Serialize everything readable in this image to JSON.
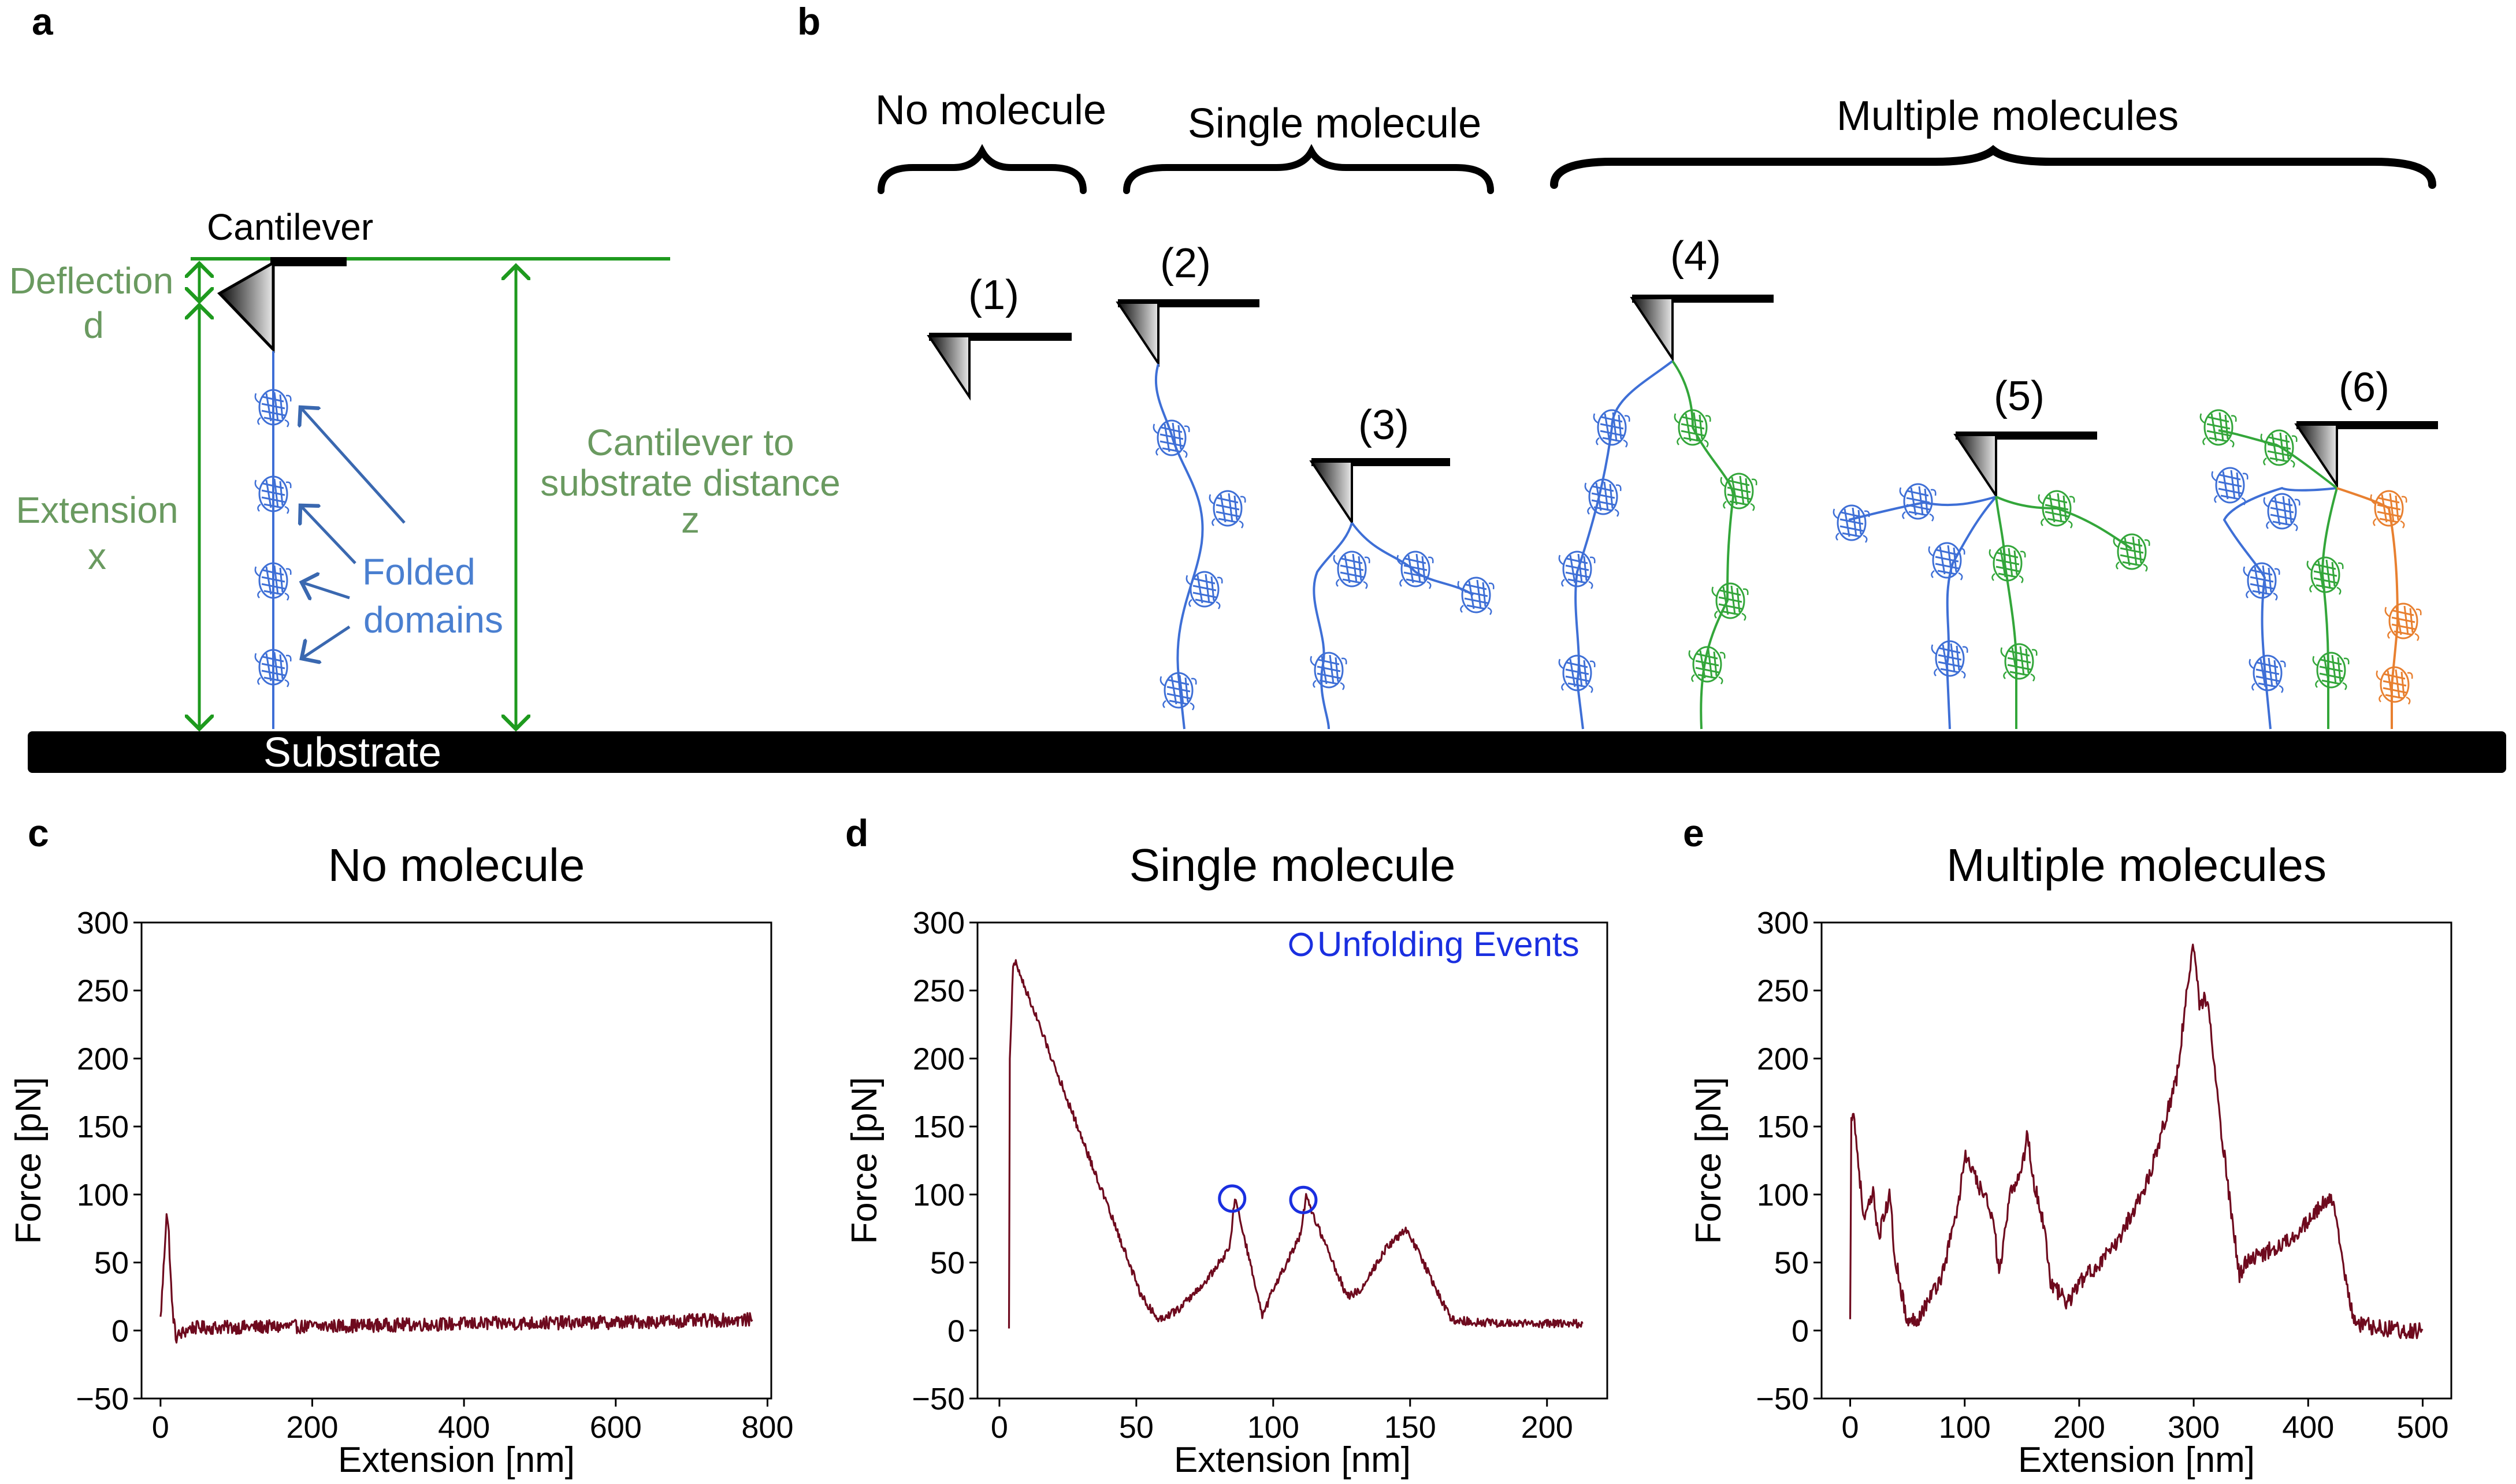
{
  "colors": {
    "trace": "#6e0a1e",
    "label_green": "#6a9a60",
    "line_green": "#1e9a1e",
    "blue_text": "#4a7fd0",
    "arrow_blue": "#3a68b0",
    "domain_blue": "#3e6fd6",
    "domain_green": "#33a63a",
    "domain_orange": "#e88030",
    "marker_blue": "#1a2fe0",
    "black": "#000000"
  },
  "panel_a": {
    "letter": "a",
    "cantilever_label": "Cantilever",
    "deflection_label": "Deflection",
    "deflection_symbol": "d",
    "extension_label": "Extension",
    "extension_symbol": "x",
    "distance_label_line1": "Cantilever to",
    "distance_label_line2": "substrate distance",
    "distance_symbol": "z",
    "folded_label_line1": "Folded",
    "folded_label_line2": "domains",
    "substrate_label": "Substrate"
  },
  "panel_b": {
    "letter": "b",
    "group_none": "No molecule",
    "group_single": "Single molecule",
    "group_multiple": "Multiple molecules",
    "case_1": "(1)",
    "case_2": "(2)",
    "case_3": "(3)",
    "case_4": "(4)",
    "case_5": "(5)",
    "case_6": "(6)"
  },
  "chart_data": [
    {
      "panel": "c",
      "type": "line",
      "title": "No molecule",
      "xlabel": "Extension [nm]",
      "ylabel": "Force [pN]",
      "xlim": [
        -25,
        805
      ],
      "ylim": [
        -50,
        300
      ],
      "xticks": [
        0,
        200,
        400,
        600,
        800
      ],
      "yticks": [
        -50,
        0,
        50,
        100,
        150,
        200,
        250,
        300
      ],
      "xtick_labels": [
        "0",
        "200",
        "400",
        "600",
        "800"
      ],
      "ytick_labels": [
        "−50",
        "0",
        "50",
        "100",
        "150",
        "200",
        "250",
        "300"
      ],
      "grid": false,
      "noise": 5,
      "trace": [
        [
          0,
          8
        ],
        [
          4,
          45
        ],
        [
          8,
          88
        ],
        [
          11,
          70
        ],
        [
          15,
          20
        ],
        [
          20,
          -5
        ],
        [
          40,
          2
        ],
        [
          200,
          3
        ],
        [
          400,
          5
        ],
        [
          600,
          6
        ],
        [
          780,
          8
        ]
      ]
    },
    {
      "panel": "d",
      "type": "line",
      "title": "Single molecule",
      "xlabel": "Extension [nm]",
      "ylabel": "Force [pN]",
      "xlim": [
        -8,
        222
      ],
      "ylim": [
        -50,
        300
      ],
      "xticks": [
        0,
        50,
        100,
        150,
        200
      ],
      "yticks": [
        -50,
        0,
        50,
        100,
        150,
        200,
        250,
        300
      ],
      "xtick_labels": [
        "0",
        "50",
        "100",
        "150",
        "200"
      ],
      "ytick_labels": [
        "−50",
        "0",
        "50",
        "100",
        "150",
        "200",
        "250",
        "300"
      ],
      "grid": false,
      "noise": 3,
      "legend": {
        "label": "Unfolding Events",
        "loc": "upper right"
      },
      "events": [
        [
          85,
          97
        ],
        [
          111,
          96
        ]
      ],
      "trace": [
        [
          3.5,
          0
        ],
        [
          3.8,
          200
        ],
        [
          5,
          268
        ],
        [
          6,
          270
        ],
        [
          52,
          25
        ],
        [
          58,
          8
        ],
        [
          65,
          15
        ],
        [
          75,
          35
        ],
        [
          84,
          60
        ],
        [
          86,
          97
        ],
        [
          87,
          90
        ],
        [
          96,
          10
        ],
        [
          100,
          30
        ],
        [
          110,
          70
        ],
        [
          112,
          98
        ],
        [
          114,
          88
        ],
        [
          127,
          25
        ],
        [
          132,
          30
        ],
        [
          141,
          60
        ],
        [
          149,
          75
        ],
        [
          150,
          70
        ],
        [
          165,
          8
        ],
        [
          175,
          6
        ],
        [
          190,
          5
        ],
        [
          213,
          5
        ]
      ]
    },
    {
      "panel": "e",
      "type": "line",
      "title": "Multiple molecules",
      "xlabel": "Extension [nm]",
      "ylabel": "Force [pN]",
      "xlim": [
        -25,
        525
      ],
      "ylim": [
        -50,
        300
      ],
      "xticks": [
        0,
        100,
        200,
        300,
        400,
        500
      ],
      "yticks": [
        -50,
        0,
        50,
        100,
        150,
        200,
        250,
        300
      ],
      "xtick_labels": [
        "0",
        "100",
        "200",
        "300",
        "400",
        "500"
      ],
      "ytick_labels": [
        "−50",
        "0",
        "50",
        "100",
        "150",
        "200",
        "250",
        "300"
      ],
      "grid": false,
      "noise": 6,
      "trace": [
        [
          0,
          5
        ],
        [
          1,
          160
        ],
        [
          3,
          160
        ],
        [
          12,
          80
        ],
        [
          20,
          100
        ],
        [
          25,
          70
        ],
        [
          35,
          100
        ],
        [
          38,
          60
        ],
        [
          50,
          5
        ],
        [
          60,
          10
        ],
        [
          80,
          40
        ],
        [
          95,
          95
        ],
        [
          100,
          130
        ],
        [
          110,
          110
        ],
        [
          125,
          85
        ],
        [
          130,
          40
        ],
        [
          140,
          100
        ],
        [
          150,
          120
        ],
        [
          155,
          145
        ],
        [
          160,
          110
        ],
        [
          170,
          75
        ],
        [
          175,
          35
        ],
        [
          190,
          20
        ],
        [
          200,
          35
        ],
        [
          230,
          60
        ],
        [
          260,
          110
        ],
        [
          285,
          185
        ],
        [
          295,
          255
        ],
        [
          300,
          285
        ],
        [
          305,
          240
        ],
        [
          312,
          245
        ],
        [
          322,
          160
        ],
        [
          340,
          40
        ],
        [
          345,
          50
        ],
        [
          380,
          65
        ],
        [
          400,
          80
        ],
        [
          420,
          100
        ],
        [
          440,
          5
        ],
        [
          480,
          0
        ],
        [
          500,
          0
        ]
      ]
    }
  ]
}
